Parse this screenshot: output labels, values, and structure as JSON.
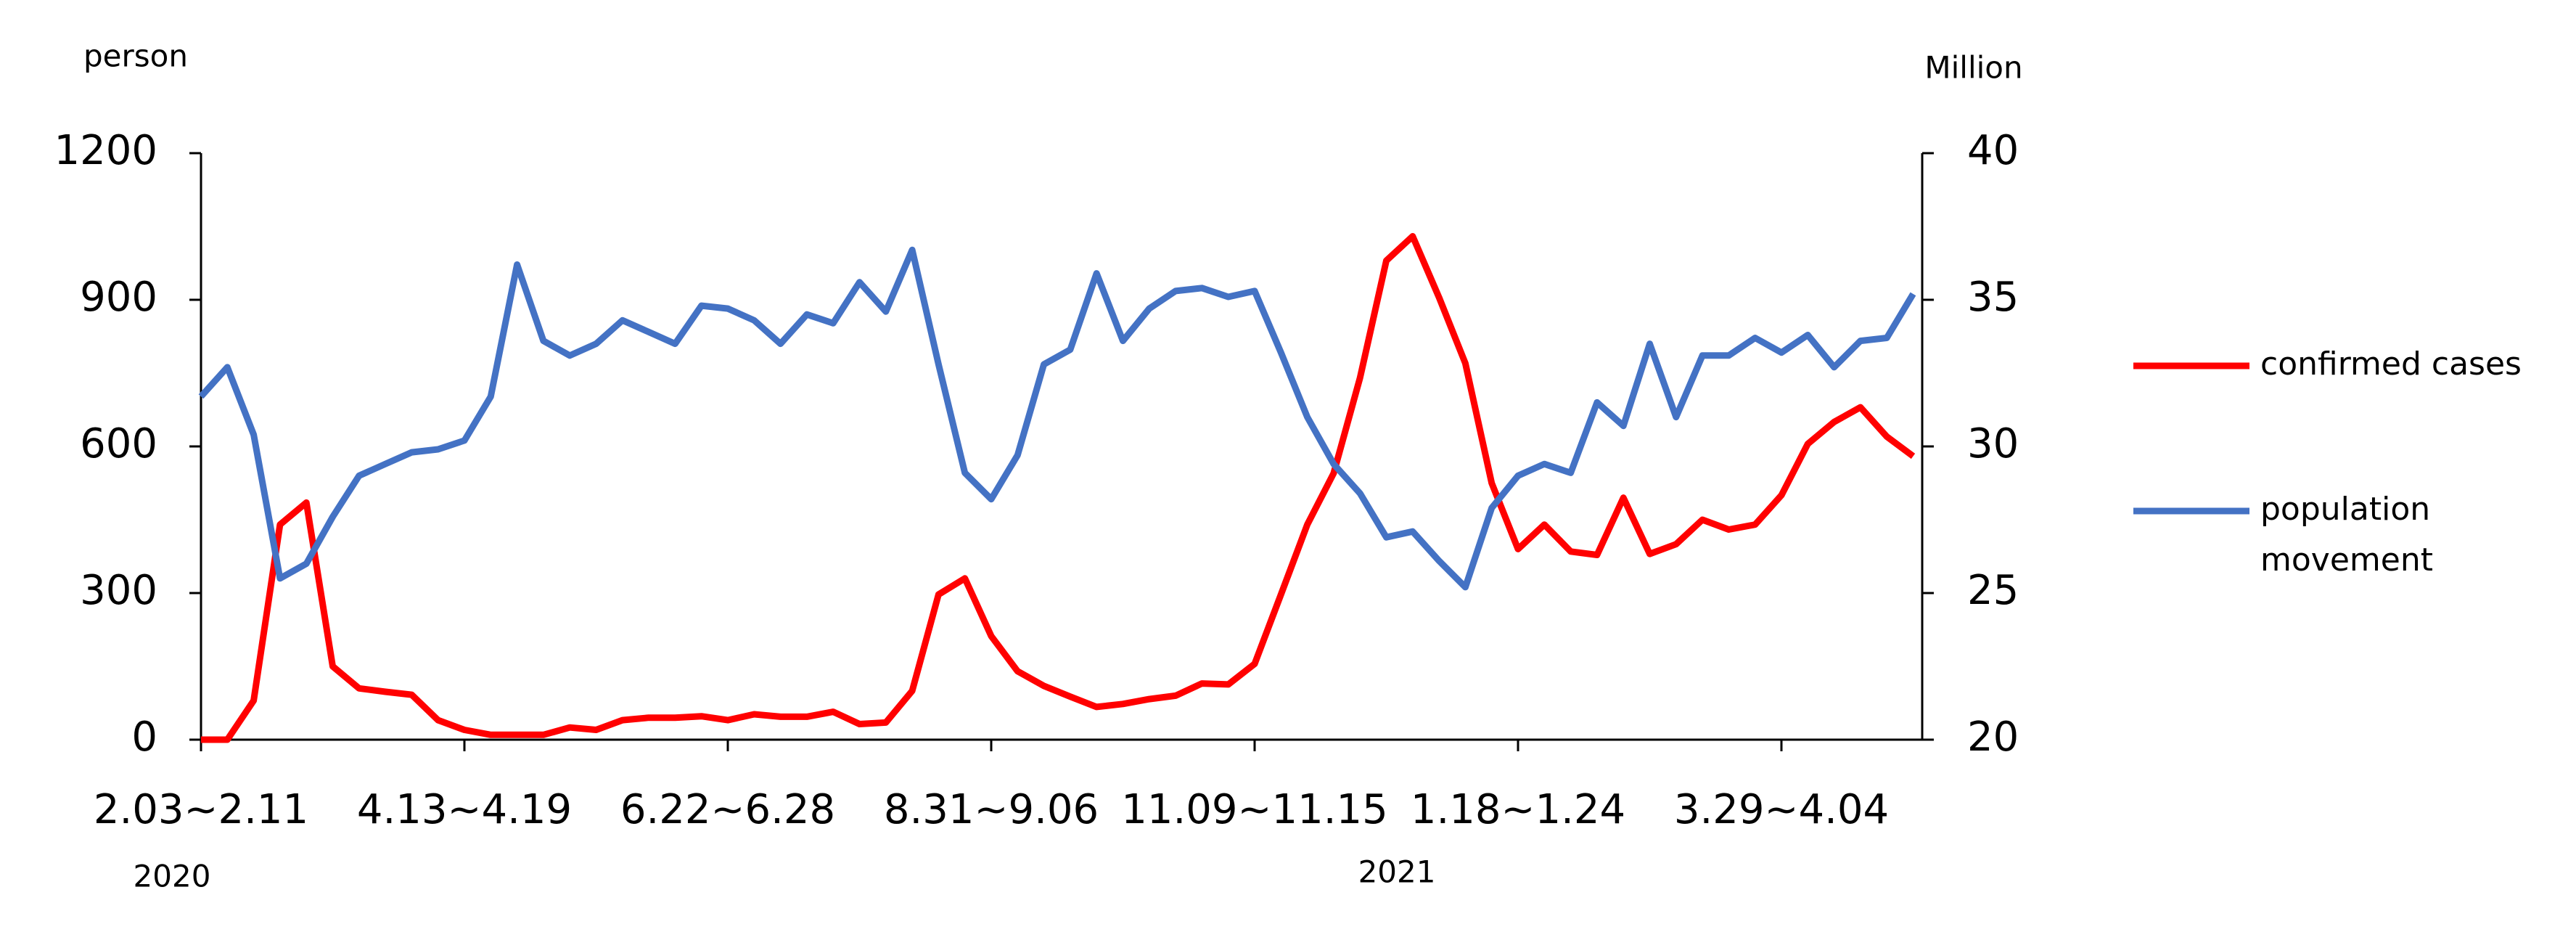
{
  "chart_data": {
    "type": "line",
    "y_label": "person",
    "y2_label": "Million",
    "annotations": [
      "2020",
      "2021"
    ],
    "categories": [
      "2.03~2.11",
      null,
      null,
      null,
      null,
      null,
      null,
      null,
      null,
      null,
      "4.13~4.19",
      null,
      null,
      null,
      null,
      null,
      null,
      null,
      null,
      null,
      "6.22~6.28",
      null,
      null,
      null,
      null,
      null,
      null,
      null,
      null,
      null,
      "8.31~9.06",
      null,
      null,
      null,
      null,
      null,
      null,
      null,
      null,
      null,
      "11.09~11.15",
      null,
      null,
      null,
      null,
      null,
      null,
      null,
      null,
      null,
      "1.18~1.24",
      null,
      null,
      null,
      null,
      null,
      null,
      null,
      null,
      null,
      "3.29~4.04",
      null,
      null,
      null,
      null,
      null
    ],
    "series": [
      {
        "name": "confirmed cases",
        "color": "#ff0000",
        "axis": "y",
        "values": [
          0,
          0,
          80,
          440,
          485,
          150,
          105,
          98,
          92,
          40,
          20,
          10,
          10,
          10,
          25,
          20,
          40,
          45,
          45,
          48,
          40,
          52,
          47,
          47,
          57,
          32,
          35,
          100,
          297,
          330,
          212,
          140,
          110,
          88,
          67,
          73,
          83,
          90,
          115,
          113,
          155,
          297,
          440,
          545,
          740,
          980,
          1030,
          905,
          770,
          525,
          390,
          440,
          385,
          378,
          495,
          380,
          400,
          450,
          430,
          440,
          500,
          605,
          650,
          680,
          620,
          580
        ]
      },
      {
        "name": "population movement",
        "color": "#4472c4",
        "axis": "y2",
        "values": [
          31.7,
          32.7,
          30.4,
          25.5,
          26.0,
          27.6,
          29.0,
          29.4,
          29.8,
          29.9,
          30.2,
          31.7,
          36.2,
          33.6,
          33.1,
          33.5,
          34.3,
          33.9,
          33.5,
          34.8,
          34.7,
          34.3,
          33.5,
          34.5,
          34.2,
          35.6,
          34.6,
          36.7,
          32.8,
          29.1,
          28.2,
          29.7,
          32.8,
          33.3,
          35.9,
          33.6,
          34.7,
          35.3,
          35.4,
          35.1,
          35.3,
          33.2,
          31.0,
          29.4,
          28.4,
          26.9,
          27.1,
          26.1,
          25.2,
          27.9,
          29.0,
          29.4,
          29.1,
          31.5,
          30.7,
          33.5,
          31.0,
          33.1,
          33.1,
          33.7,
          33.2,
          33.8,
          32.7,
          33.6,
          33.7,
          35.2
        ]
      }
    ],
    "ylim": [
      0,
      1200
    ],
    "yticks": [
      0,
      300,
      600,
      900,
      1200
    ],
    "y2lim": [
      20,
      40
    ],
    "y2ticks": [
      20,
      25,
      30,
      35,
      40
    ],
    "grid": false,
    "legend": "right"
  }
}
